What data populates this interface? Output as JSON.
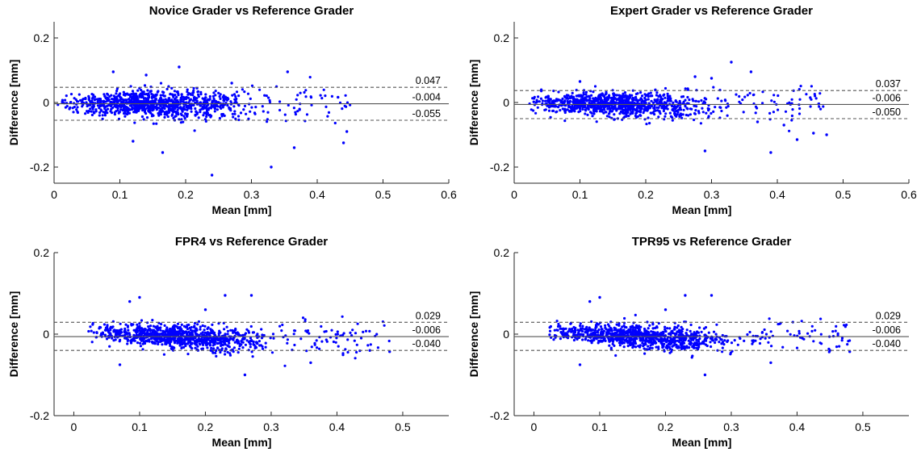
{
  "chart_data": [
    {
      "type": "scatter",
      "title": "Novice Grader vs Reference Grader",
      "xlabel": "Mean [mm]",
      "ylabel": "Difference [mm]",
      "xlim": [
        0,
        0.6
      ],
      "ylim": [
        -0.25,
        0.25
      ],
      "xticks": [
        0,
        0.1,
        0.2,
        0.3,
        0.4,
        0.5,
        0.6
      ],
      "xtick_labels": [
        "0",
        "0.1",
        "0.2",
        "0.3",
        "0.4",
        "0.5",
        "0.6"
      ],
      "yticks": [
        -0.2,
        0,
        0.2
      ],
      "ytick_labels": [
        "-0.2",
        "0",
        "0.2"
      ],
      "upper_loa": 0.047,
      "mean_diff": -0.004,
      "lower_loa": -0.055,
      "upper_loa_label": "0.047",
      "mean_diff_label": "-0.004",
      "lower_loa_label": "-0.055",
      "point_color": "#0000ff",
      "x_dist": {
        "min": 0.005,
        "mode": 0.14,
        "max": 0.45
      },
      "y_dist": {
        "sd": 0.024,
        "trend": 0
      },
      "n_points": 1050,
      "outliers": [
        [
          0.24,
          -0.225
        ],
        [
          0.33,
          -0.2
        ],
        [
          0.19,
          0.11
        ],
        [
          0.09,
          0.095
        ],
        [
          0.355,
          0.095
        ],
        [
          0.44,
          -0.125
        ],
        [
          0.165,
          -0.155
        ],
        [
          0.365,
          -0.14
        ],
        [
          0.12,
          -0.12
        ],
        [
          0.445,
          -0.09
        ],
        [
          0.14,
          0.085
        ],
        [
          0.27,
          0.06
        ]
      ]
    },
    {
      "type": "scatter",
      "title": "Expert Grader vs Reference Grader",
      "xlabel": "Mean [mm]",
      "ylabel": "Difference [mm]",
      "xlim": [
        0,
        0.6
      ],
      "ylim": [
        -0.25,
        0.25
      ],
      "xticks": [
        0,
        0.1,
        0.2,
        0.3,
        0.4,
        0.5,
        0.6
      ],
      "xtick_labels": [
        "0",
        "0.1",
        "0.2",
        "0.3",
        "0.4",
        "0.5",
        "0.6"
      ],
      "yticks": [
        -0.2,
        0,
        0.2
      ],
      "ytick_labels": [
        "-0.2",
        "0",
        "0.2"
      ],
      "upper_loa": 0.037,
      "mean_diff": -0.006,
      "lower_loa": -0.05,
      "upper_loa_label": "0.037",
      "mean_diff_label": "-0.006",
      "lower_loa_label": "-0.050",
      "point_color": "#0000ff",
      "x_dist": {
        "min": 0.01,
        "mode": 0.15,
        "max": 0.47
      },
      "y_dist": {
        "sd": 0.021,
        "trend": -0.01
      },
      "n_points": 1000,
      "outliers": [
        [
          0.33,
          0.125
        ],
        [
          0.39,
          -0.155
        ],
        [
          0.29,
          -0.15
        ],
        [
          0.36,
          0.095
        ],
        [
          0.455,
          -0.095
        ],
        [
          0.43,
          -0.115
        ],
        [
          0.475,
          -0.1
        ],
        [
          0.275,
          0.08
        ],
        [
          0.3,
          0.075
        ],
        [
          0.37,
          -0.06
        ],
        [
          0.1,
          0.065
        ],
        [
          0.41,
          -0.07
        ],
        [
          0.45,
          0.015
        ]
      ]
    },
    {
      "type": "scatter",
      "title": "FPR4 vs Reference Grader",
      "xlabel": "Mean [mm]",
      "ylabel": "Difference [mm]",
      "xlim": [
        -0.03,
        0.57
      ],
      "ylim": [
        -0.2,
        0.2
      ],
      "xticks": [
        0,
        0.1,
        0.2,
        0.3,
        0.4,
        0.5
      ],
      "xtick_labels": [
        "0",
        "0.1",
        "0.2",
        "0.3",
        "0.4",
        "0.5"
      ],
      "yticks": [
        -0.2,
        0,
        0.2
      ],
      "ytick_labels": [
        "-0.2",
        "0",
        "0.2"
      ],
      "upper_loa": 0.029,
      "mean_diff": -0.006,
      "lower_loa": -0.04,
      "upper_loa_label": "0.029",
      "mean_diff_label": "-0.006",
      "lower_loa_label": "-0.040",
      "point_color": "#0000ff",
      "x_dist": {
        "min": 0.015,
        "mode": 0.15,
        "max": 0.48
      },
      "y_dist": {
        "sd": 0.016,
        "trend": -0.015
      },
      "n_points": 1000,
      "outliers": [
        [
          0.23,
          0.095
        ],
        [
          0.27,
          0.095
        ],
        [
          0.1,
          0.09
        ],
        [
          0.085,
          0.08
        ],
        [
          0.26,
          -0.1
        ],
        [
          0.07,
          -0.075
        ],
        [
          0.48,
          -0.043
        ],
        [
          0.45,
          -0.04
        ],
        [
          0.2,
          0.06
        ],
        [
          0.36,
          -0.07
        ]
      ]
    },
    {
      "type": "scatter",
      "title": "TPR95 vs Reference Grader",
      "xlabel": "Mean [mm]",
      "ylabel": "Difference [mm]",
      "xlim": [
        -0.03,
        0.57
      ],
      "ylim": [
        -0.2,
        0.2
      ],
      "xticks": [
        0,
        0.1,
        0.2,
        0.3,
        0.4,
        0.5
      ],
      "xtick_labels": [
        "0",
        "0.1",
        "0.2",
        "0.3",
        "0.4",
        "0.5"
      ],
      "yticks": [
        -0.2,
        0,
        0.2
      ],
      "ytick_labels": [
        "-0.2",
        "0",
        "0.2"
      ],
      "upper_loa": 0.029,
      "mean_diff": -0.006,
      "lower_loa": -0.04,
      "upper_loa_label": "0.029",
      "mean_diff_label": "-0.006",
      "lower_loa_label": "-0.040",
      "point_color": "#0000ff",
      "x_dist": {
        "min": 0.015,
        "mode": 0.15,
        "max": 0.48
      },
      "y_dist": {
        "sd": 0.016,
        "trend": -0.015
      },
      "n_points": 1000,
      "outliers": [
        [
          0.23,
          0.095
        ],
        [
          0.27,
          0.095
        ],
        [
          0.1,
          0.09
        ],
        [
          0.085,
          0.08
        ],
        [
          0.26,
          -0.1
        ],
        [
          0.07,
          -0.075
        ],
        [
          0.48,
          -0.043
        ],
        [
          0.45,
          -0.04
        ],
        [
          0.2,
          0.06
        ],
        [
          0.36,
          -0.07
        ]
      ]
    }
  ]
}
